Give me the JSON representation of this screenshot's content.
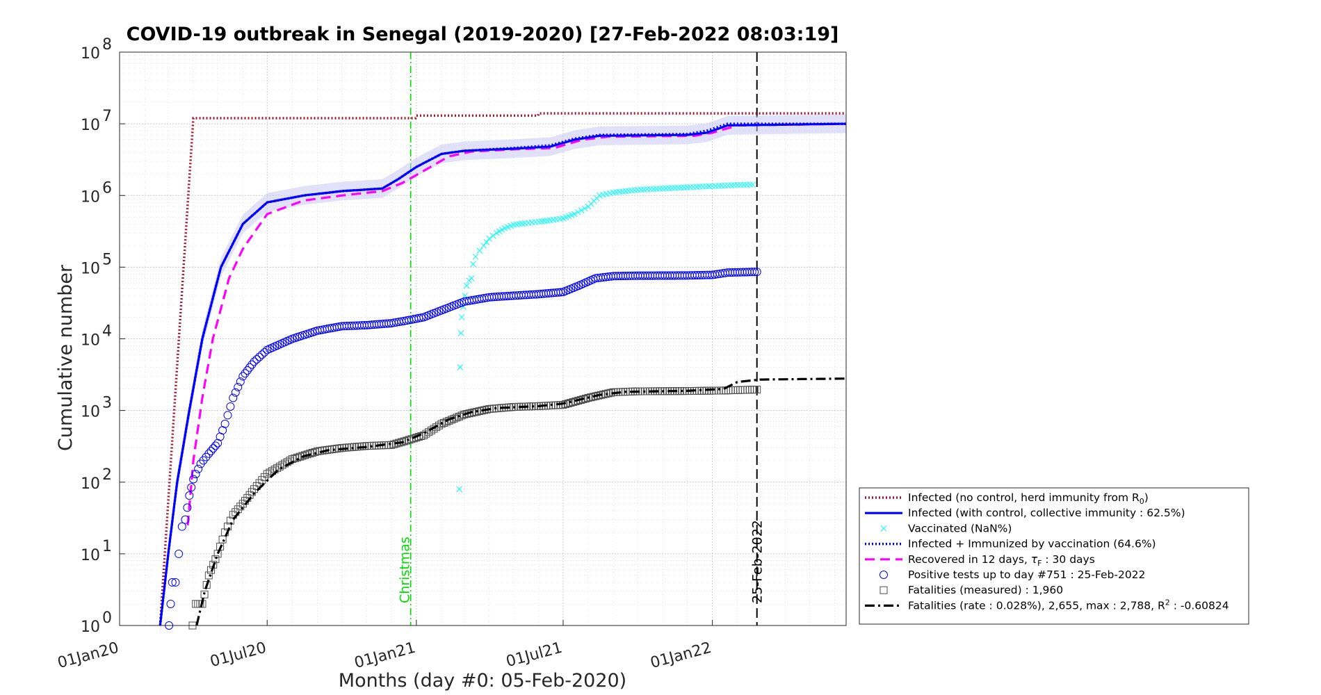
{
  "chart_data": {
    "type": "line",
    "title": "COVID-19 outbreak in Senegal (2019-2020) [27-Feb-2022 08:03:19]",
    "xlabel": "Months (day #0: 05-Feb-2020)",
    "ylabel": "Cumulative number",
    "yscale": "log",
    "ylim": [
      1,
      100000000
    ],
    "xlim": [
      "2020-01-01",
      "2022-06-15"
    ],
    "x_ticks": [
      {
        "date": "2020-01-01",
        "label": "01Jan20"
      },
      {
        "date": "2020-07-01",
        "label": "01Jul20"
      },
      {
        "date": "2021-01-01",
        "label": "01Jan21"
      },
      {
        "date": "2021-07-01",
        "label": "01Jul21"
      },
      {
        "date": "2022-01-01",
        "label": "01Jan22"
      }
    ],
    "y_ticks": [
      {
        "value": 1,
        "base": "10",
        "exp": "0"
      },
      {
        "value": 10,
        "base": "10",
        "exp": "1"
      },
      {
        "value": 100,
        "base": "10",
        "exp": "2"
      },
      {
        "value": 1000,
        "base": "10",
        "exp": "3"
      },
      {
        "value": 10000,
        "base": "10",
        "exp": "4"
      },
      {
        "value": 100000,
        "base": "10",
        "exp": "5"
      },
      {
        "value": 1000000,
        "base": "10",
        "exp": "6"
      },
      {
        "value": 10000000,
        "base": "10",
        "exp": "7"
      },
      {
        "value": 100000000,
        "base": "10",
        "exp": "8"
      }
    ],
    "grid": true,
    "legend_position": "bottom-right, outside plot",
    "annotations": [
      {
        "date": "2020-12-25",
        "label": "Christmas",
        "color": "#00dd00"
      },
      {
        "date": "2022-02-25",
        "label": "25-Feb-2022",
        "color": "#000000"
      }
    ],
    "series": [
      {
        "name": "Infected (no control, herd immunity from R",
        "name_sub": "0",
        "name_end": ")",
        "color": "#a2142f",
        "style": "dotted",
        "points": [
          [
            "2020-02-20",
            1
          ],
          [
            "2020-04-01",
            12000000
          ],
          [
            "2020-12-31",
            12000000
          ],
          [
            "2021-01-01",
            13000000
          ],
          [
            "2021-05-31",
            13000000
          ],
          [
            "2021-06-01",
            14000000
          ],
          [
            "2022-06-15",
            14000000
          ]
        ]
      },
      {
        "name": "Infected (with control, collective immunity : 62.5%)",
        "color": "#0000ff",
        "style": "solid",
        "points": [
          [
            "2020-02-20",
            1
          ],
          [
            "2020-03-01",
            10
          ],
          [
            "2020-03-12",
            100
          ],
          [
            "2020-03-27",
            1000
          ],
          [
            "2020-04-12",
            10000
          ],
          [
            "2020-05-05",
            100000
          ],
          [
            "2020-06-01",
            400000
          ],
          [
            "2020-07-01",
            800000
          ],
          [
            "2020-08-15",
            1000000
          ],
          [
            "2020-10-01",
            1150000
          ],
          [
            "2020-11-20",
            1250000
          ],
          [
            "2020-12-10",
            1700000
          ],
          [
            "2021-01-01",
            2500000
          ],
          [
            "2021-02-01",
            3800000
          ],
          [
            "2021-03-01",
            4200000
          ],
          [
            "2021-05-01",
            4500000
          ],
          [
            "2021-06-15",
            4800000
          ],
          [
            "2021-07-15",
            6000000
          ],
          [
            "2021-08-15",
            6800000
          ],
          [
            "2021-12-01",
            7000000
          ],
          [
            "2021-12-25",
            7500000
          ],
          [
            "2022-01-20",
            9500000
          ],
          [
            "2022-06-15",
            10000000
          ]
        ]
      },
      {
        "name": "Vaccinated (NaN%)",
        "color": "#00ffff",
        "style": "marker-x",
        "points": [
          [
            "2021-02-23",
            80
          ],
          [
            "2021-02-24",
            4000
          ],
          [
            "2021-02-25",
            12000
          ],
          [
            "2021-02-26",
            20000
          ],
          [
            "2021-02-28",
            28000
          ],
          [
            "2021-03-02",
            40000
          ],
          [
            "2021-03-04",
            55000
          ],
          [
            "2021-03-07",
            65000
          ],
          [
            "2021-03-10",
            70000
          ],
          [
            "2021-03-12",
            110000
          ],
          [
            "2021-03-15",
            140000
          ],
          [
            "2021-03-20",
            170000
          ],
          [
            "2021-03-25",
            200000
          ],
          [
            "2021-04-01",
            250000
          ],
          [
            "2021-04-10",
            300000
          ],
          [
            "2021-04-20",
            350000
          ],
          [
            "2021-05-01",
            390000
          ],
          [
            "2021-05-15",
            410000
          ],
          [
            "2021-06-01",
            430000
          ],
          [
            "2021-06-15",
            450000
          ],
          [
            "2021-07-01",
            480000
          ],
          [
            "2021-07-15",
            550000
          ],
          [
            "2021-08-01",
            700000
          ],
          [
            "2021-08-15",
            1000000
          ],
          [
            "2021-09-01",
            1100000
          ],
          [
            "2021-10-01",
            1200000
          ],
          [
            "2021-11-01",
            1250000
          ],
          [
            "2021-12-01",
            1300000
          ],
          [
            "2022-01-01",
            1350000
          ],
          [
            "2022-02-01",
            1400000
          ],
          [
            "2022-02-20",
            1420000
          ]
        ]
      },
      {
        "name": "Infected + Immunized by vaccination (64.6%)",
        "color": "#0000ff",
        "style": "dotted",
        "points": [
          [
            "2020-02-20",
            1
          ],
          [
            "2020-03-01",
            10
          ],
          [
            "2020-03-12",
            100
          ],
          [
            "2020-03-27",
            1000
          ],
          [
            "2020-04-12",
            10000
          ],
          [
            "2020-05-05",
            100000
          ],
          [
            "2020-06-01",
            400000
          ],
          [
            "2020-07-01",
            800000
          ],
          [
            "2020-08-15",
            1000000
          ],
          [
            "2020-10-01",
            1150000
          ],
          [
            "2020-11-20",
            1250000
          ],
          [
            "2020-12-10",
            1700000
          ],
          [
            "2021-01-01",
            2500000
          ],
          [
            "2021-02-01",
            3800000
          ],
          [
            "2021-03-01",
            4200000
          ],
          [
            "2021-05-01",
            4600000
          ],
          [
            "2021-06-15",
            5000000
          ],
          [
            "2021-07-15",
            6200000
          ],
          [
            "2021-08-15",
            7000000
          ],
          [
            "2021-12-01",
            7200000
          ],
          [
            "2021-12-25",
            8000000
          ],
          [
            "2022-01-20",
            10000000
          ],
          [
            "2022-06-15",
            10000000
          ]
        ]
      },
      {
        "name": "Recovered in 12 days, ",
        "name_tau": "τ",
        "name_sub": "F",
        "name_end": " : 30 days",
        "color": "#ff00ff",
        "style": "dashed",
        "points": [
          [
            "2020-03-25",
            25
          ],
          [
            "2020-04-01",
            200
          ],
          [
            "2020-04-12",
            1500
          ],
          [
            "2020-04-25",
            10000
          ],
          [
            "2020-05-15",
            70000
          ],
          [
            "2020-06-01",
            180000
          ],
          [
            "2020-07-01",
            550000
          ],
          [
            "2020-08-15",
            850000
          ],
          [
            "2020-10-01",
            1000000
          ],
          [
            "2020-11-20",
            1150000
          ],
          [
            "2020-12-15",
            1500000
          ],
          [
            "2021-01-10",
            2200000
          ],
          [
            "2021-02-10",
            3500000
          ],
          [
            "2021-03-10",
            4100000
          ],
          [
            "2021-05-01",
            4400000
          ],
          [
            "2021-06-20",
            4600000
          ],
          [
            "2021-07-25",
            6000000
          ],
          [
            "2021-08-25",
            6600000
          ],
          [
            "2021-12-10",
            6800000
          ],
          [
            "2022-01-01",
            7500000
          ],
          [
            "2022-02-01",
            9500000
          ],
          [
            "2022-06-15",
            10000000
          ]
        ]
      },
      {
        "name": "Positive tests up to day #751 : 25-Feb-2022",
        "color": "#0000ff",
        "style": "marker-o",
        "points": [
          [
            "2020-03-02",
            1
          ],
          [
            "2020-03-04",
            2
          ],
          [
            "2020-03-06",
            4
          ],
          [
            "2020-03-10",
            4
          ],
          [
            "2020-03-14",
            10
          ],
          [
            "2020-03-18",
            24
          ],
          [
            "2020-03-22",
            30
          ],
          [
            "2020-03-27",
            65
          ],
          [
            "2020-04-01",
            110
          ],
          [
            "2020-04-10",
            180
          ],
          [
            "2020-04-20",
            250
          ],
          [
            "2020-05-01",
            350
          ],
          [
            "2020-05-10",
            650
          ],
          [
            "2020-05-20",
            1500
          ],
          [
            "2020-06-01",
            3000
          ],
          [
            "2020-06-15",
            4800
          ],
          [
            "2020-07-01",
            7000
          ],
          [
            "2020-08-01",
            10000
          ],
          [
            "2020-09-01",
            13000
          ],
          [
            "2020-10-01",
            15000
          ],
          [
            "2020-11-01",
            15500
          ],
          [
            "2020-12-01",
            16500
          ],
          [
            "2020-12-20",
            18000
          ],
          [
            "2021-01-10",
            20000
          ],
          [
            "2021-02-01",
            25000
          ],
          [
            "2021-03-01",
            33000
          ],
          [
            "2021-04-01",
            38000
          ],
          [
            "2021-05-01",
            40000
          ],
          [
            "2021-06-01",
            42000
          ],
          [
            "2021-07-01",
            45000
          ],
          [
            "2021-07-20",
            55000
          ],
          [
            "2021-08-10",
            70000
          ],
          [
            "2021-09-01",
            75000
          ],
          [
            "2021-10-01",
            76000
          ],
          [
            "2021-12-01",
            76500
          ],
          [
            "2022-01-01",
            78000
          ],
          [
            "2022-01-20",
            84000
          ],
          [
            "2022-02-25",
            86000
          ]
        ]
      },
      {
        "name": "Fatalities (measured) : 1,960",
        "color": "#4d4d4d",
        "style": "marker-s",
        "points": [
          [
            "2020-03-31",
            1
          ],
          [
            "2020-04-04",
            2
          ],
          [
            "2020-04-12",
            2
          ],
          [
            "2020-04-20",
            5
          ],
          [
            "2020-05-01",
            10
          ],
          [
            "2020-05-10",
            20
          ],
          [
            "2020-05-20",
            35
          ],
          [
            "2020-06-01",
            50
          ],
          [
            "2020-06-15",
            80
          ],
          [
            "2020-07-01",
            130
          ],
          [
            "2020-08-01",
            210
          ],
          [
            "2020-09-01",
            270
          ],
          [
            "2020-10-01",
            300
          ],
          [
            "2020-11-01",
            320
          ],
          [
            "2020-12-01",
            330
          ],
          [
            "2020-12-20",
            380
          ],
          [
            "2021-01-10",
            450
          ],
          [
            "2021-02-01",
            650
          ],
          [
            "2021-03-01",
            880
          ],
          [
            "2021-04-01",
            1050
          ],
          [
            "2021-05-01",
            1120
          ],
          [
            "2021-06-01",
            1150
          ],
          [
            "2021-07-01",
            1200
          ],
          [
            "2021-08-01",
            1500
          ],
          [
            "2021-09-01",
            1800
          ],
          [
            "2021-10-01",
            1850
          ],
          [
            "2021-12-01",
            1870
          ],
          [
            "2022-01-15",
            1900
          ],
          [
            "2022-02-25",
            1960
          ]
        ]
      },
      {
        "name": "Fatalities (rate : 0.028%), 2,655, max : 2,788, R",
        "name_sup": "2",
        "name_end": " : -0.60824",
        "color": "#000000",
        "style": "dashdot",
        "points": [
          [
            "2020-04-05",
            1
          ],
          [
            "2020-04-15",
            3
          ],
          [
            "2020-05-01",
            10
          ],
          [
            "2020-05-20",
            30
          ],
          [
            "2020-06-15",
            70
          ],
          [
            "2020-07-15",
            150
          ],
          [
            "2020-08-15",
            230
          ],
          [
            "2020-09-15",
            280
          ],
          [
            "2020-11-01",
            310
          ],
          [
            "2020-12-15",
            360
          ],
          [
            "2021-01-10",
            480
          ],
          [
            "2021-02-10",
            750
          ],
          [
            "2021-03-10",
            950
          ],
          [
            "2021-04-10",
            1080
          ],
          [
            "2021-06-01",
            1150
          ],
          [
            "2021-07-01",
            1250
          ],
          [
            "2021-08-15",
            1650
          ],
          [
            "2021-09-15",
            1820
          ],
          [
            "2021-12-01",
            1880
          ],
          [
            "2022-01-15",
            2000
          ],
          [
            "2022-02-01",
            2500
          ],
          [
            "2022-03-01",
            2700
          ],
          [
            "2022-06-15",
            2788
          ]
        ]
      }
    ]
  }
}
